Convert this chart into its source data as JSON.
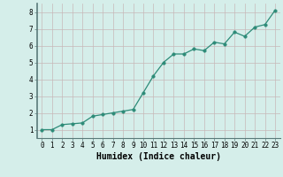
{
  "x": [
    0,
    1,
    2,
    3,
    4,
    5,
    6,
    7,
    8,
    9,
    10,
    11,
    12,
    13,
    14,
    15,
    16,
    17,
    18,
    19,
    20,
    21,
    22,
    23
  ],
  "y": [
    1.0,
    1.0,
    1.3,
    1.35,
    1.4,
    1.8,
    1.9,
    2.0,
    2.1,
    2.2,
    3.2,
    4.2,
    5.0,
    5.5,
    5.5,
    5.8,
    5.7,
    6.2,
    6.1,
    6.8,
    6.55,
    7.1,
    7.25,
    8.1
  ],
  "line_color": "#2d8b78",
  "marker_color": "#2d8b78",
  "bg_color": "#d5eeea",
  "grid_color": "#c8b8b8",
  "spine_color": "#5a7a7a",
  "xlabel": "Humidex (Indice chaleur)",
  "xlim": [
    -0.5,
    23.5
  ],
  "ylim": [
    0.5,
    8.5
  ],
  "xticks": [
    0,
    1,
    2,
    3,
    4,
    5,
    6,
    7,
    8,
    9,
    10,
    11,
    12,
    13,
    14,
    15,
    16,
    17,
    18,
    19,
    20,
    21,
    22,
    23
  ],
  "yticks": [
    1,
    2,
    3,
    4,
    5,
    6,
    7,
    8
  ],
  "tick_fontsize": 5.5,
  "label_fontsize": 7,
  "marker_size": 2.5,
  "line_width": 0.9
}
